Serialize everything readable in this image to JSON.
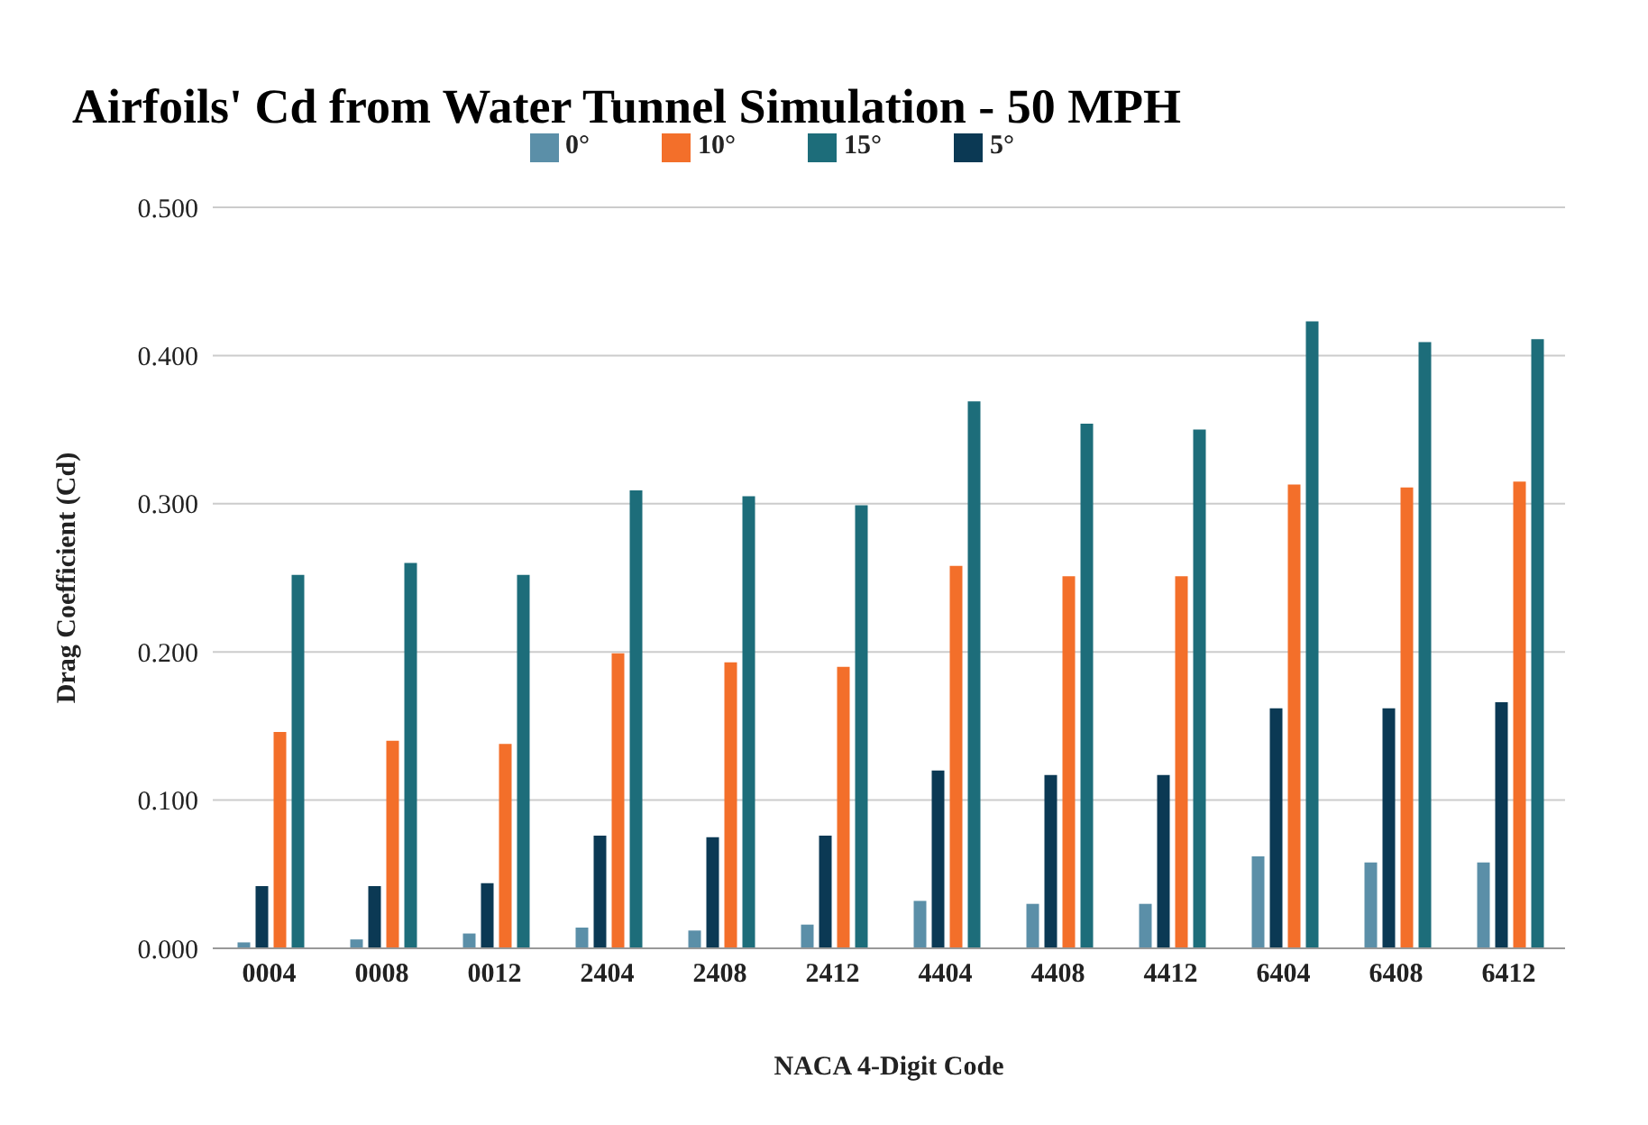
{
  "chart_data": {
    "type": "bar",
    "title": "Airfoils' Cd from Water Tunnel Simulation - 50 MPH",
    "xlabel": "NACA 4-Digit Code",
    "ylabel": "Drag Coefficient (Cd)",
    "categories": [
      "0004",
      "0008",
      "0012",
      "2404",
      "2408",
      "2412",
      "4404",
      "4408",
      "4412",
      "6404",
      "6408",
      "6412"
    ],
    "series": [
      {
        "name": "0°",
        "color": "#5b8fa8",
        "values": [
          0.004,
          0.006,
          0.01,
          0.014,
          0.012,
          0.016,
          0.032,
          0.03,
          0.03,
          0.062,
          0.058,
          0.058
        ]
      },
      {
        "name": "5°",
        "color": "#0b3954",
        "values": [
          0.042,
          0.042,
          0.044,
          0.076,
          0.075,
          0.076,
          0.12,
          0.117,
          0.117,
          0.162,
          0.162,
          0.166
        ]
      },
      {
        "name": "10°",
        "color": "#f36f2a",
        "values": [
          0.146,
          0.14,
          0.138,
          0.199,
          0.193,
          0.19,
          0.258,
          0.251,
          0.251,
          0.313,
          0.311,
          0.315
        ]
      },
      {
        "name": "15°",
        "color": "#1d6d7a",
        "values": [
          0.252,
          0.26,
          0.252,
          0.309,
          0.305,
          0.299,
          0.369,
          0.354,
          0.35,
          0.423,
          0.409,
          0.411
        ]
      }
    ],
    "ylim": [
      0,
      0.5
    ],
    "yticks": [
      {
        "value": 0,
        "label": "0.000"
      },
      {
        "value": 0.1,
        "label": "0.100"
      },
      {
        "value": 0.2,
        "label": "0.200"
      },
      {
        "value": 0.3,
        "label": "0.300"
      },
      {
        "value": 0.4,
        "label": "0.400"
      },
      {
        "value": 0.5,
        "label": "0.500"
      }
    ],
    "grid": "y",
    "legend": "top"
  }
}
